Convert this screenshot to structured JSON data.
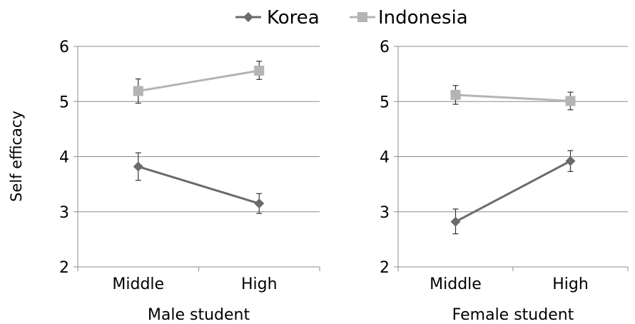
{
  "legend": [
    {
      "name": "Korea",
      "color": "#6b6b6b",
      "marker": "diamond"
    },
    {
      "name": "Indonesia",
      "color": "#b4b4b4",
      "marker": "square"
    }
  ],
  "ylabel": "Self efficacy",
  "chart_data": [
    {
      "type": "line",
      "title": "",
      "xlabel": "Male student",
      "ylabel": "Self efficacy",
      "categories": [
        "Middle",
        "High"
      ],
      "ylim": [
        2,
        6
      ],
      "yticks": [
        2,
        3,
        4,
        5,
        6
      ],
      "grid": true,
      "legend_position": "top",
      "series": [
        {
          "name": "Korea",
          "values": [
            3.82,
            3.15
          ],
          "err_high": [
            4.07,
            3.33
          ],
          "err_low": [
            3.57,
            2.97
          ],
          "color": "#6b6b6b",
          "marker": "diamond"
        },
        {
          "name": "Indonesia",
          "values": [
            5.19,
            5.56
          ],
          "err_high": [
            5.41,
            5.73
          ],
          "err_low": [
            4.97,
            5.4
          ],
          "color": "#b4b4b4",
          "marker": "square"
        }
      ]
    },
    {
      "type": "line",
      "title": "",
      "xlabel": "Female student",
      "ylabel": "",
      "categories": [
        "Middle",
        "High"
      ],
      "ylim": [
        2,
        6
      ],
      "yticks": [
        2,
        3,
        4,
        5,
        6
      ],
      "grid": true,
      "legend_position": "top",
      "series": [
        {
          "name": "Korea",
          "values": [
            2.82,
            3.92
          ],
          "err_high": [
            3.05,
            4.11
          ],
          "err_low": [
            2.6,
            3.73
          ],
          "color": "#6b6b6b",
          "marker": "diamond"
        },
        {
          "name": "Indonesia",
          "values": [
            5.12,
            5.01
          ],
          "err_high": [
            5.29,
            5.17
          ],
          "err_low": [
            4.95,
            4.85
          ],
          "color": "#b4b4b4",
          "marker": "square"
        }
      ]
    }
  ]
}
